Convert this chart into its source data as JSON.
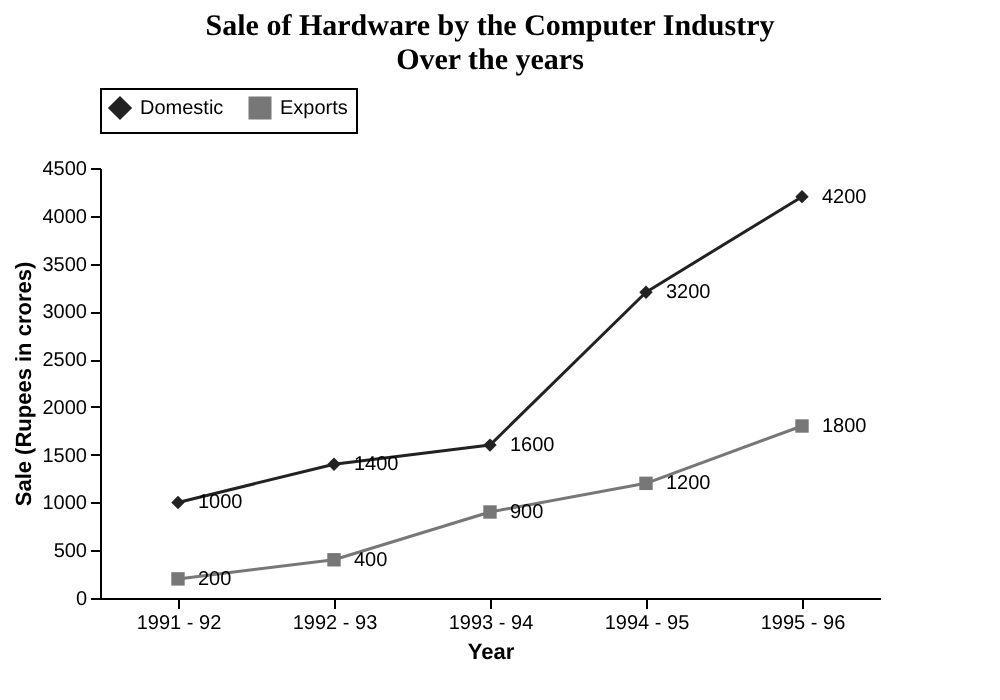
{
  "chart_data": {
    "type": "line",
    "title": "Sale of Hardware by the Computer Industry\nOver the years",
    "xlabel": "Year",
    "ylabel": "Sale (Rupees in crores)",
    "categories": [
      "1991 - 92",
      "1992 - 93",
      "1993 - 94",
      "1994 - 95",
      "1995 - 96"
    ],
    "series": [
      {
        "name": "Domestic",
        "color": "#222222",
        "marker": "diamond",
        "values": [
          1000,
          1400,
          1600,
          3200,
          4200
        ]
      },
      {
        "name": "Exports",
        "color": "#777777",
        "marker": "square",
        "values": [
          200,
          400,
          900,
          1200,
          1800
        ]
      }
    ],
    "ylim": [
      0,
      4500
    ],
    "yticks": [
      0,
      500,
      1000,
      1500,
      2000,
      2500,
      3000,
      3500,
      4000,
      4500
    ],
    "data_labels": true,
    "legend": "top",
    "grid": false,
    "line_style": "solid"
  }
}
